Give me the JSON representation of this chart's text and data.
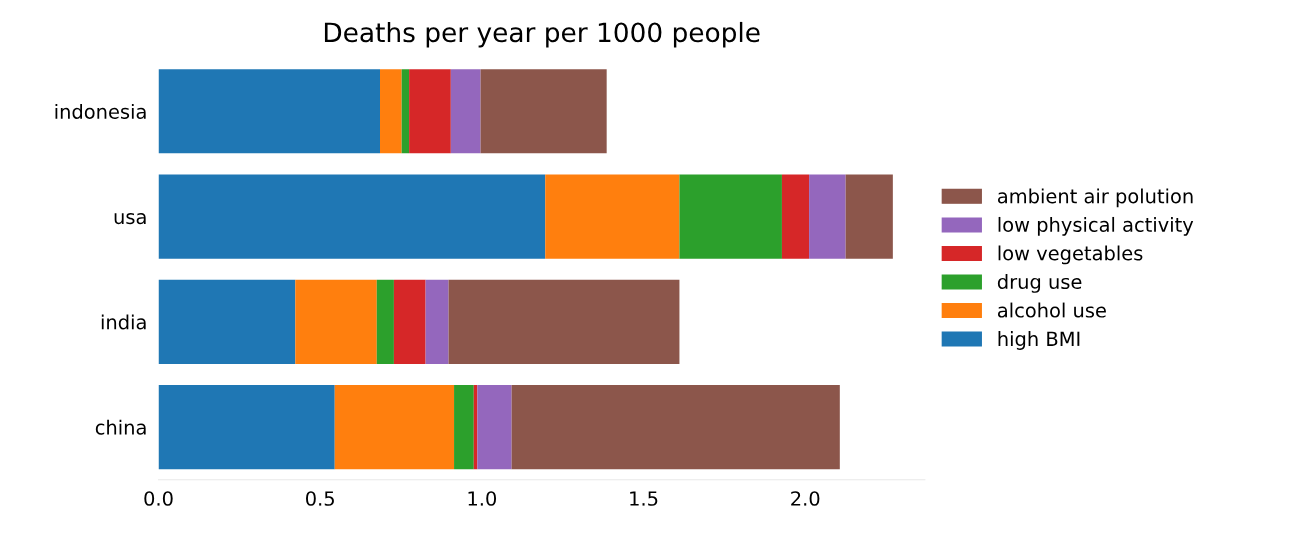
{
  "chart_data": {
    "type": "bar",
    "orientation": "horizontal",
    "stacked": true,
    "title": "Deaths per year per 1000 people",
    "categories": [
      "indonesia",
      "usa",
      "india",
      "china"
    ],
    "series": [
      {
        "name": "high BMI",
        "color": "#1f77b4",
        "values": [
          0.685,
          1.196,
          0.423,
          0.545
        ]
      },
      {
        "name": "alcohol use",
        "color": "#ff7f0e",
        "values": [
          0.067,
          0.415,
          0.252,
          0.369
        ]
      },
      {
        "name": "drug use",
        "color": "#2ca02c",
        "values": [
          0.023,
          0.317,
          0.053,
          0.061
        ]
      },
      {
        "name": "low vegetables",
        "color": "#d62728",
        "values": [
          0.129,
          0.084,
          0.098,
          0.011
        ]
      },
      {
        "name": "low physical activity",
        "color": "#9467bd",
        "values": [
          0.092,
          0.113,
          0.071,
          0.106
        ]
      },
      {
        "name": "ambient air polution",
        "color": "#8c564b",
        "values": [
          0.39,
          0.146,
          0.714,
          1.015
        ]
      }
    ],
    "xlim": [
      0,
      2.37
    ],
    "xticks": [
      {
        "value": 0,
        "label": "0.0"
      },
      0.5,
      {
        "value": 1,
        "label": "1.0"
      },
      1.5,
      {
        "value": 2,
        "label": "2.0"
      }
    ],
    "legend": "right",
    "grid": false
  }
}
